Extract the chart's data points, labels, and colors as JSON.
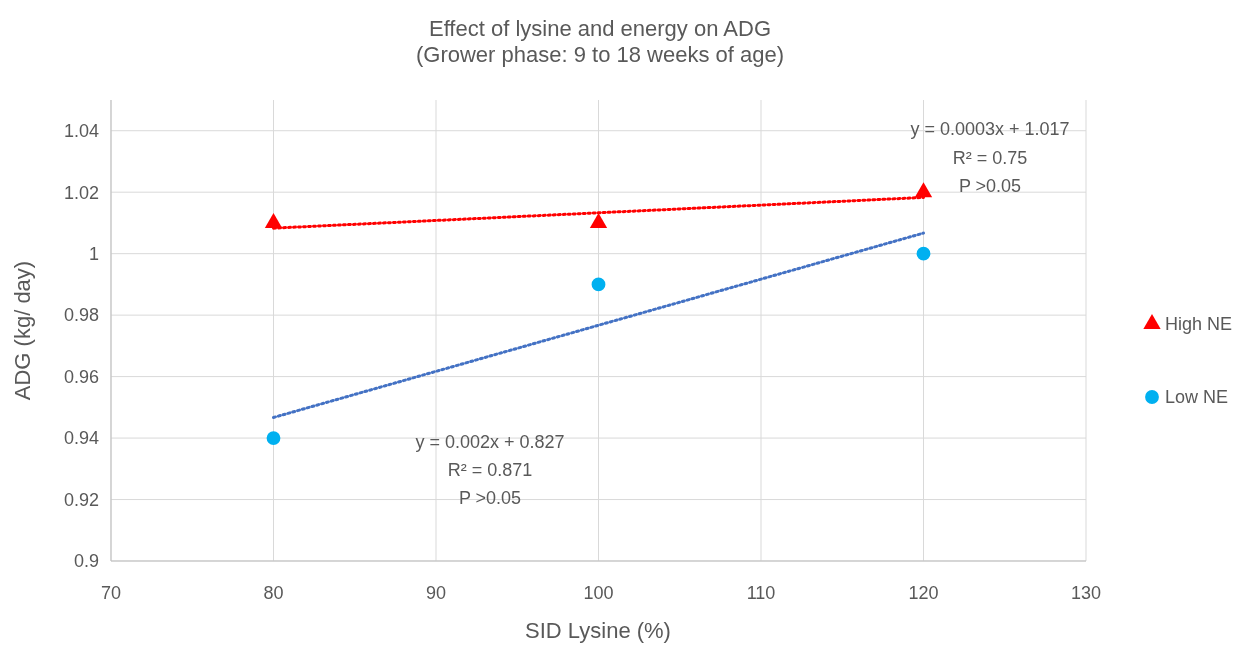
{
  "chart_data": {
    "type": "scatter",
    "title": "Effect of lysine and energy on ADG",
    "subtitle": "(Grower phase: 9 to 18 weeks of age)",
    "xlabel": "SID Lysine (%)",
    "ylabel": "ADG (kg/ day)",
    "xlim": [
      70,
      130
    ],
    "xticks": [
      70,
      80,
      90,
      100,
      110,
      120,
      130
    ],
    "ylim": [
      0.9,
      1.05
    ],
    "yticks": [
      0.9,
      0.92,
      0.94,
      0.96,
      0.98,
      1,
      1.02,
      1.04
    ],
    "grid": true,
    "legend": "right",
    "series": [
      {
        "name": "High NE",
        "type": "scatter",
        "marker": "triangle",
        "color": "#ff0000",
        "x": [
          80,
          100,
          120
        ],
        "values": [
          1.01,
          1.01,
          1.02
        ]
      },
      {
        "name": "Low NE",
        "type": "scatter",
        "marker": "circle",
        "color": "#00b0f0",
        "x": [
          80,
          100,
          120
        ],
        "values": [
          0.94,
          0.99,
          1.0
        ]
      },
      {
        "type": "line",
        "marker": "none",
        "line_style": "dotted",
        "color": "#ff0000",
        "x": [
          80,
          120
        ],
        "values": [
          1.0083,
          1.0183
        ]
      },
      {
        "type": "line",
        "marker": "none",
        "line_style": "dotted",
        "color": "#4472c4",
        "x": [
          80,
          120
        ],
        "values": [
          0.9467,
          1.0067
        ]
      }
    ],
    "annotations": [
      "y = 0.0003x + 1.017",
      "R² = 0.75",
      "P >0.05",
      "y = 0.002x + 0.827",
      "R² = 0.871",
      "P >0.05"
    ]
  }
}
